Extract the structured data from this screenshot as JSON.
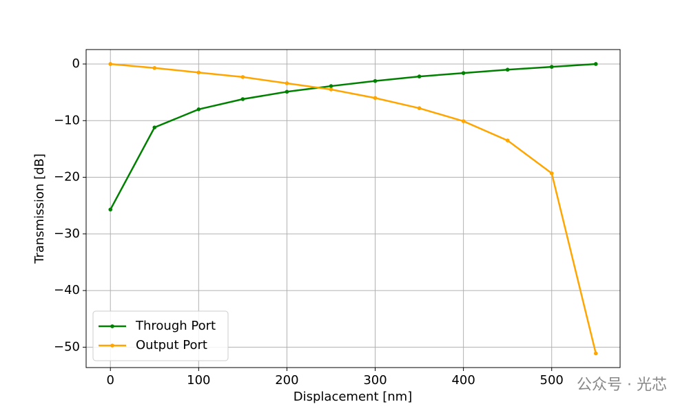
{
  "chart_data": {
    "type": "line",
    "xlabel": "Displacement [nm]",
    "ylabel": "Transmission [dB]",
    "x": [
      0,
      50,
      100,
      150,
      200,
      250,
      300,
      350,
      400,
      450,
      500,
      550
    ],
    "series": [
      {
        "name": "Through Port",
        "color": "#008000",
        "values": [
          -25.7,
          -11.2,
          -8.0,
          -6.2,
          -4.9,
          -3.9,
          -3.0,
          -2.2,
          -1.6,
          -1.0,
          -0.5,
          0
        ]
      },
      {
        "name": "Output Port",
        "color": "#ffa500",
        "values": [
          0,
          -0.7,
          -1.5,
          -2.3,
          -3.4,
          -4.5,
          -6.0,
          -7.8,
          -10.1,
          -13.5,
          -19.3,
          -51.1
        ]
      }
    ],
    "xlim": [
      -27.5,
      577.5
    ],
    "ylim": [
      -53.6,
      2.55
    ],
    "xticks": [
      0,
      100,
      200,
      300,
      400,
      500
    ],
    "yticks": [
      {
        "value": -50,
        "label": "−50"
      },
      {
        "value": -40,
        "label": "−40"
      },
      {
        "value": -30,
        "label": "−30"
      },
      {
        "value": -20,
        "label": "−20"
      },
      {
        "value": -10,
        "label": "−10"
      },
      0
    ],
    "grid": true,
    "legend": "lower left",
    "watermark": "公众号 · 光芯"
  }
}
